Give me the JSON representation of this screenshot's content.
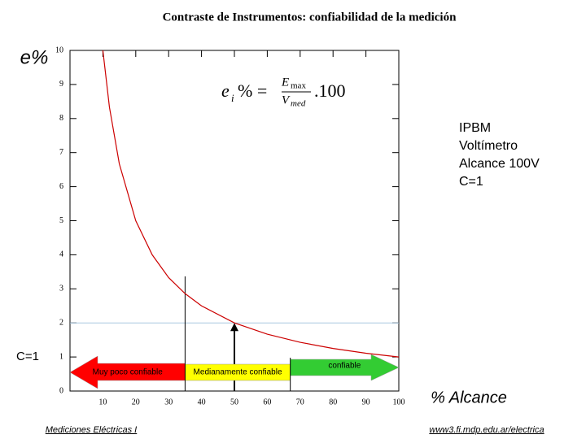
{
  "chart_data": {
    "type": "line",
    "title": "Contraste de Instrumentos: confiabilidad de la medición",
    "y_label": "e%",
    "x_label": "% Alcance",
    "x": [
      10,
      12,
      15,
      20,
      25,
      30,
      35,
      40,
      50,
      60,
      70,
      80,
      90,
      100
    ],
    "series": [
      {
        "name": "e%",
        "color": "#cc0000",
        "values": [
          10,
          8.33,
          6.67,
          5,
          4,
          3.33,
          2.86,
          2.5,
          2,
          1.67,
          1.43,
          1.25,
          1.11,
          1
        ]
      }
    ],
    "xlim": [
      0,
      100
    ],
    "xticks": [
      10,
      20,
      30,
      40,
      50,
      60,
      70,
      80,
      90,
      100
    ],
    "ylim": [
      0,
      10
    ],
    "yticks": [
      0,
      1,
      2,
      3,
      4,
      5,
      6,
      7,
      8,
      9,
      10
    ],
    "formula": {
      "lhs": "e",
      "lhs_sub": "i",
      "lhs_rest": "% =",
      "num": "E",
      "num_sub": "max",
      "den": "V",
      "den_sub": "med",
      "factor": ".100"
    },
    "annotation": [
      "IPBM",
      "Voltímetro",
      "Alcance 100V",
      "C=1"
    ],
    "left_note": "C=1",
    "reference": {
      "x": 50,
      "y": 2,
      "color": "#a8c8e0"
    },
    "zones": [
      {
        "label": "Muy poco confiable",
        "from": 0,
        "to": 35,
        "color": "#ff0000"
      },
      {
        "label": "Medianamente confiable",
        "from": 35,
        "to": 67,
        "color": "#ffff00"
      },
      {
        "label": "confiable",
        "from": 67,
        "to": 100,
        "color": "#33cc33"
      }
    ],
    "footer_left": "Mediciones Eléctricas I",
    "footer_right": "www3.fi.mdp.edu.ar/electrica"
  }
}
